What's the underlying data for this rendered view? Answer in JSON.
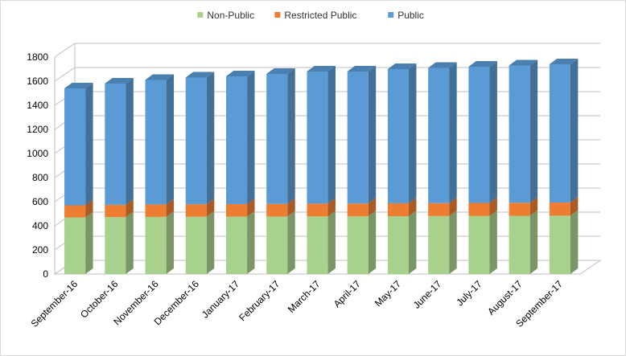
{
  "chart_data": {
    "type": "bar",
    "stacked": true,
    "three_d": true,
    "title": "",
    "xlabel": "",
    "ylabel": "",
    "ylim": [
      0,
      1800
    ],
    "yticks": [
      0,
      200,
      400,
      600,
      800,
      1000,
      1200,
      1400,
      1600,
      1800
    ],
    "grid": true,
    "legend_position": "top",
    "categories": [
      "September-16",
      "October-16",
      "November-16",
      "December-16",
      "January-17",
      "February-17",
      "March-17",
      "April-17",
      "May-17",
      "June-17",
      "July-17",
      "August-17",
      "September-17"
    ],
    "series": [
      {
        "name": "Non-Public",
        "color": "#a9d18e",
        "values": [
          470,
          472,
          474,
          475,
          476,
          477,
          478,
          479,
          480,
          481,
          482,
          483,
          484
        ]
      },
      {
        "name": "Restricted Public",
        "color": "#ed7d31",
        "values": [
          100,
          102,
          103,
          104,
          104,
          105,
          106,
          106,
          107,
          107,
          108,
          108,
          109
        ]
      },
      {
        "name": "Public",
        "color": "#5b9bd5",
        "values": [
          970,
          1006,
          1033,
          1051,
          1060,
          1078,
          1096,
          1095,
          1113,
          1122,
          1130,
          1139,
          1147
        ]
      }
    ]
  }
}
